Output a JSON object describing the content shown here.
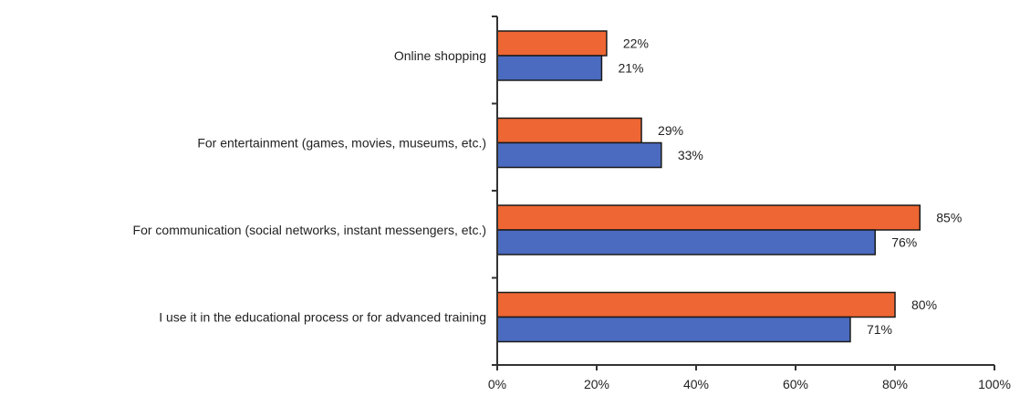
{
  "chart_data": {
    "type": "bar",
    "orientation": "horizontal",
    "categories": [
      "Online shopping",
      "For entertainment (games, movies, museums, etc.)",
      "For communication (social networks, instant messengers, etc.)",
      "I use it in the educational process or for advanced training"
    ],
    "series": [
      {
        "values": [
          22,
          29,
          85,
          80
        ],
        "color": "#ee6633",
        "value_labels": [
          "22%",
          "29%",
          "85%",
          "80%"
        ]
      },
      {
        "values": [
          21,
          33,
          76,
          71
        ],
        "color": "#4a6bbf",
        "value_labels": [
          "21%",
          "33%",
          "76%",
          "71%"
        ]
      }
    ],
    "xlim": [
      0,
      100
    ],
    "x_ticks": [
      0,
      20,
      40,
      60,
      80,
      100
    ],
    "x_tick_labels": [
      "0%",
      "20%",
      "40%",
      "60%",
      "80%",
      "100%"
    ],
    "grid": false,
    "legend": "none"
  }
}
